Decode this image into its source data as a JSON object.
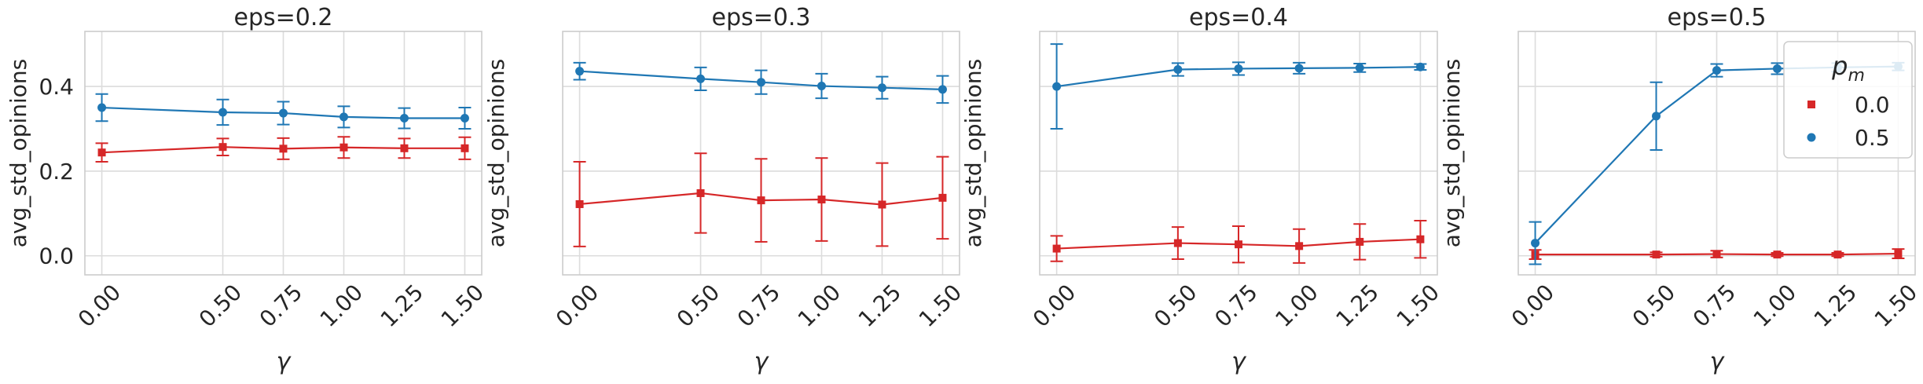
{
  "figure": {
    "legend": {
      "title": "p",
      "title_sub": "m",
      "entries": [
        {
          "label": "0.0",
          "color": "#d62728",
          "marker": "square"
        },
        {
          "label": "0.5",
          "color": "#1f77b4",
          "marker": "circle"
        }
      ],
      "placement": "top-right of last panel"
    }
  },
  "chart_data": [
    {
      "type": "line",
      "title": "eps=0.2",
      "xlabel": "γ",
      "ylabel": "avg_std_opinions",
      "x": [
        0.0,
        0.5,
        0.75,
        1.0,
        1.25,
        1.5
      ],
      "xtick_labels": [
        "0.00",
        "0.50",
        "0.75",
        "1.00",
        "1.25",
        "1.50"
      ],
      "xlim": [
        -0.07,
        1.57
      ],
      "ylim": [
        -0.045,
        0.53
      ],
      "yticks": [
        0.0,
        0.2,
        0.4
      ],
      "ytick_labels": [
        "0.0",
        "0.2",
        "0.4"
      ],
      "grid": true,
      "series": [
        {
          "name": "0.0",
          "color": "#d62728",
          "marker": "square",
          "values": [
            0.244,
            0.257,
            0.253,
            0.256,
            0.254,
            0.254
          ],
          "err": [
            0.022,
            0.02,
            0.025,
            0.025,
            0.023,
            0.026
          ]
        },
        {
          "name": "0.5",
          "color": "#1f77b4",
          "marker": "circle",
          "values": [
            0.35,
            0.339,
            0.337,
            0.328,
            0.325,
            0.325
          ],
          "err": [
            0.032,
            0.03,
            0.027,
            0.025,
            0.024,
            0.025
          ]
        }
      ]
    },
    {
      "type": "line",
      "title": "eps=0.3",
      "xlabel": "γ",
      "ylabel": "avg_std_opinions",
      "x": [
        0.0,
        0.5,
        0.75,
        1.0,
        1.25,
        1.5
      ],
      "xtick_labels": [
        "0.00",
        "0.50",
        "0.75",
        "1.00",
        "1.25",
        "1.50"
      ],
      "xlim": [
        -0.07,
        1.57
      ],
      "ylim": [
        -0.045,
        0.53
      ],
      "yticks": [
        0.0,
        0.2,
        0.4
      ],
      "ytick_labels": [
        "",
        "",
        ""
      ],
      "grid": true,
      "series": [
        {
          "name": "0.0",
          "color": "#d62728",
          "marker": "square",
          "values": [
            0.122,
            0.148,
            0.131,
            0.133,
            0.121,
            0.137
          ],
          "err": [
            0.1,
            0.094,
            0.098,
            0.098,
            0.098,
            0.097
          ]
        },
        {
          "name": "0.5",
          "color": "#1f77b4",
          "marker": "circle",
          "values": [
            0.436,
            0.418,
            0.41,
            0.401,
            0.397,
            0.393
          ],
          "err": [
            0.02,
            0.027,
            0.028,
            0.029,
            0.026,
            0.032
          ]
        }
      ]
    },
    {
      "type": "line",
      "title": "eps=0.4",
      "xlabel": "γ",
      "ylabel": "avg_std_opinions",
      "x": [
        0.0,
        0.5,
        0.75,
        1.0,
        1.25,
        1.5
      ],
      "xtick_labels": [
        "0.00",
        "0.50",
        "0.75",
        "1.00",
        "1.25",
        "1.50"
      ],
      "xlim": [
        -0.07,
        1.57
      ],
      "ylim": [
        -0.045,
        0.53
      ],
      "yticks": [
        0.0,
        0.2,
        0.4
      ],
      "ytick_labels": [
        "",
        "",
        ""
      ],
      "grid": true,
      "series": [
        {
          "name": "0.0",
          "color": "#d62728",
          "marker": "square",
          "values": [
            0.017,
            0.03,
            0.027,
            0.023,
            0.033,
            0.039
          ],
          "err": [
            0.03,
            0.038,
            0.043,
            0.04,
            0.042,
            0.044
          ]
        },
        {
          "name": "0.5",
          "color": "#1f77b4",
          "marker": "circle",
          "values": [
            0.4,
            0.44,
            0.442,
            0.443,
            0.444,
            0.446
          ],
          "err": [
            0.1,
            0.015,
            0.015,
            0.013,
            0.01,
            0.007
          ]
        }
      ]
    },
    {
      "type": "line",
      "title": "eps=0.5",
      "xlabel": "γ",
      "ylabel": "avg_std_opinions",
      "x": [
        0.0,
        0.5,
        0.75,
        1.0,
        1.25,
        1.5
      ],
      "xtick_labels": [
        "0.00",
        "0.50",
        "0.75",
        "1.00",
        "1.25",
        "1.50"
      ],
      "xlim": [
        -0.07,
        1.57
      ],
      "ylim": [
        -0.045,
        0.53
      ],
      "yticks": [
        0.0,
        0.2,
        0.4
      ],
      "ytick_labels": [
        "",
        "",
        ""
      ],
      "grid": true,
      "series": [
        {
          "name": "0.0",
          "color": "#d62728",
          "marker": "square",
          "values": [
            0.003,
            0.003,
            0.004,
            0.003,
            0.003,
            0.005
          ],
          "err": [
            0.011,
            0.005,
            0.008,
            0.004,
            0.004,
            0.011
          ]
        },
        {
          "name": "0.5",
          "color": "#1f77b4",
          "marker": "circle",
          "values": [
            0.03,
            0.33,
            0.438,
            0.442,
            0.445,
            0.447
          ],
          "err": [
            0.05,
            0.08,
            0.015,
            0.013,
            0.01,
            0.009
          ]
        }
      ]
    }
  ]
}
